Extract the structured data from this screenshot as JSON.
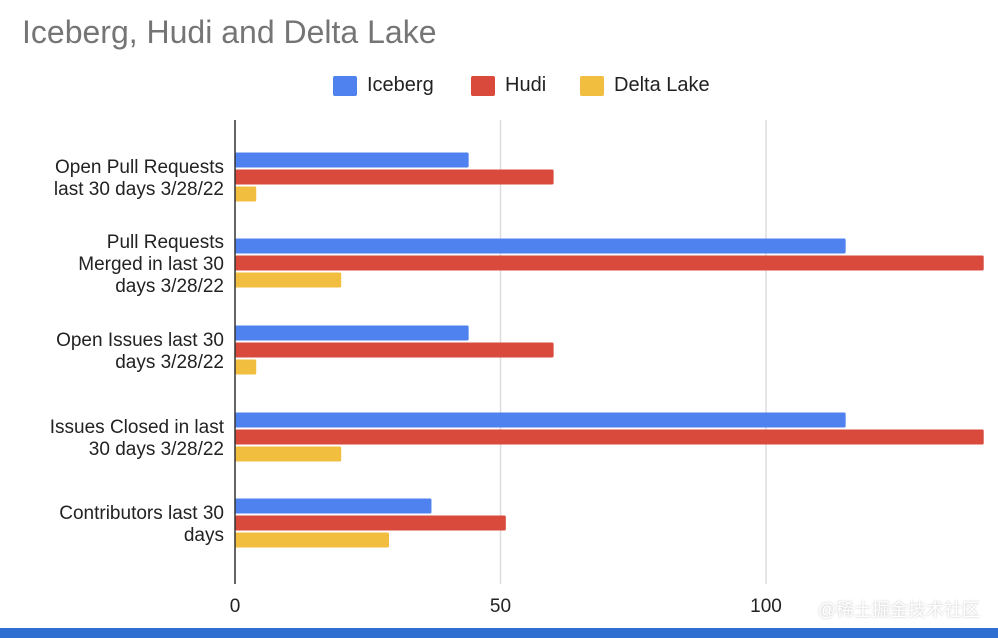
{
  "colors": {
    "iceberg": "#4f81ef",
    "hudi": "#d9493c",
    "delta_lake": "#f2be3f",
    "gridline": "#dddddd",
    "axis": "#333333",
    "bottom_band": "#2f6fd1"
  },
  "chart_data": {
    "type": "bar",
    "orientation": "horizontal",
    "title": "Iceberg, Hudi and Delta Lake",
    "categories": [
      [
        "Open Pull Requests",
        "last 30 days 3/28/22"
      ],
      [
        "Pull Requests",
        "Merged in last 30",
        "days 3/28/22"
      ],
      [
        "Open Issues last 30",
        "days 3/28/22"
      ],
      [
        "Issues Closed in last",
        "30 days 3/28/22"
      ],
      [
        "Contributors last 30",
        "days"
      ]
    ],
    "series": [
      {
        "name": "Iceberg",
        "color_key": "iceberg",
        "values": [
          44,
          115,
          44,
          115,
          37
        ]
      },
      {
        "name": "Hudi",
        "color_key": "hudi",
        "values": [
          60,
          141,
          60,
          141,
          51
        ]
      },
      {
        "name": "Delta Lake",
        "color_key": "delta_lake",
        "values": [
          4,
          20,
          4,
          20,
          29
        ]
      }
    ],
    "xlim": [
      0,
      141
    ],
    "xticks": [
      0,
      50,
      100
    ],
    "xtick_labels": [
      "0",
      "50",
      "100"
    ],
    "xlabel": "",
    "ylabel": "",
    "grid": true,
    "legend_position": "top"
  },
  "watermark": "@稀土掘金技术社区"
}
